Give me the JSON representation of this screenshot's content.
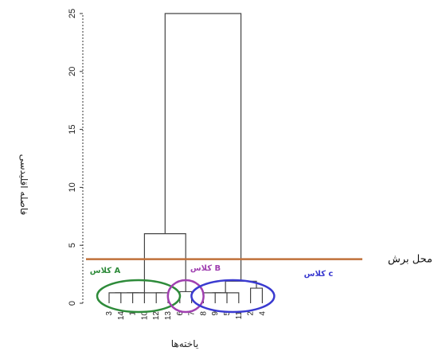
{
  "chart_data": {
    "type": "dendrogram",
    "title": "",
    "xlabel": "یاخته‌ها",
    "ylabel": "فاصله اقلیدسی",
    "ylim": [
      0,
      25
    ],
    "yticks": [
      0,
      5,
      10,
      15,
      20,
      25
    ],
    "leaves": [
      "3",
      "14",
      "1",
      "10",
      "12",
      "13",
      "6",
      "7",
      "8",
      "9",
      "5",
      "11",
      "2",
      "4"
    ],
    "merges": [
      {
        "left": "3",
        "right": "14",
        "height": 0.9
      },
      {
        "left": "1",
        "right": "10",
        "height": 0.9
      },
      {
        "left": "12",
        "right": "13",
        "height": 0.9
      },
      {
        "left": "3-14",
        "right": "1-10",
        "height": 0.9
      },
      {
        "left": "3-14-1-10",
        "right": "12-13",
        "height": 0.9
      },
      {
        "left": "6",
        "right": "7",
        "height": 1.0
      },
      {
        "left": "9",
        "right": "5",
        "height": 0.9
      },
      {
        "left": "8",
        "right": "9-5",
        "height": 0.9
      },
      {
        "left": "8-9-5",
        "right": "11",
        "height": 0.9
      },
      {
        "left": "2",
        "right": "4",
        "height": 1.3
      },
      {
        "left": "8-9-5-11",
        "right": "2-4",
        "height": 1.9
      },
      {
        "left": "A",
        "right": "B",
        "height": 6.0
      },
      {
        "left": "A-B",
        "right": "C",
        "height": 25.0
      }
    ],
    "cut_height": 3.8,
    "cut_label": "محل برش",
    "cut_color": "#c0703a",
    "clusters": [
      {
        "label": "کلاس A",
        "members": [
          "3",
          "14",
          "1",
          "10",
          "12",
          "13"
        ],
        "color": "#2e8b3a"
      },
      {
        "label": "کلاس B",
        "members": [
          "6",
          "7"
        ],
        "color": "#a040b0"
      },
      {
        "label": "کلاس c",
        "members": [
          "8",
          "9",
          "5",
          "11",
          "2",
          "4"
        ],
        "color": "#3a3ad0"
      }
    ]
  }
}
